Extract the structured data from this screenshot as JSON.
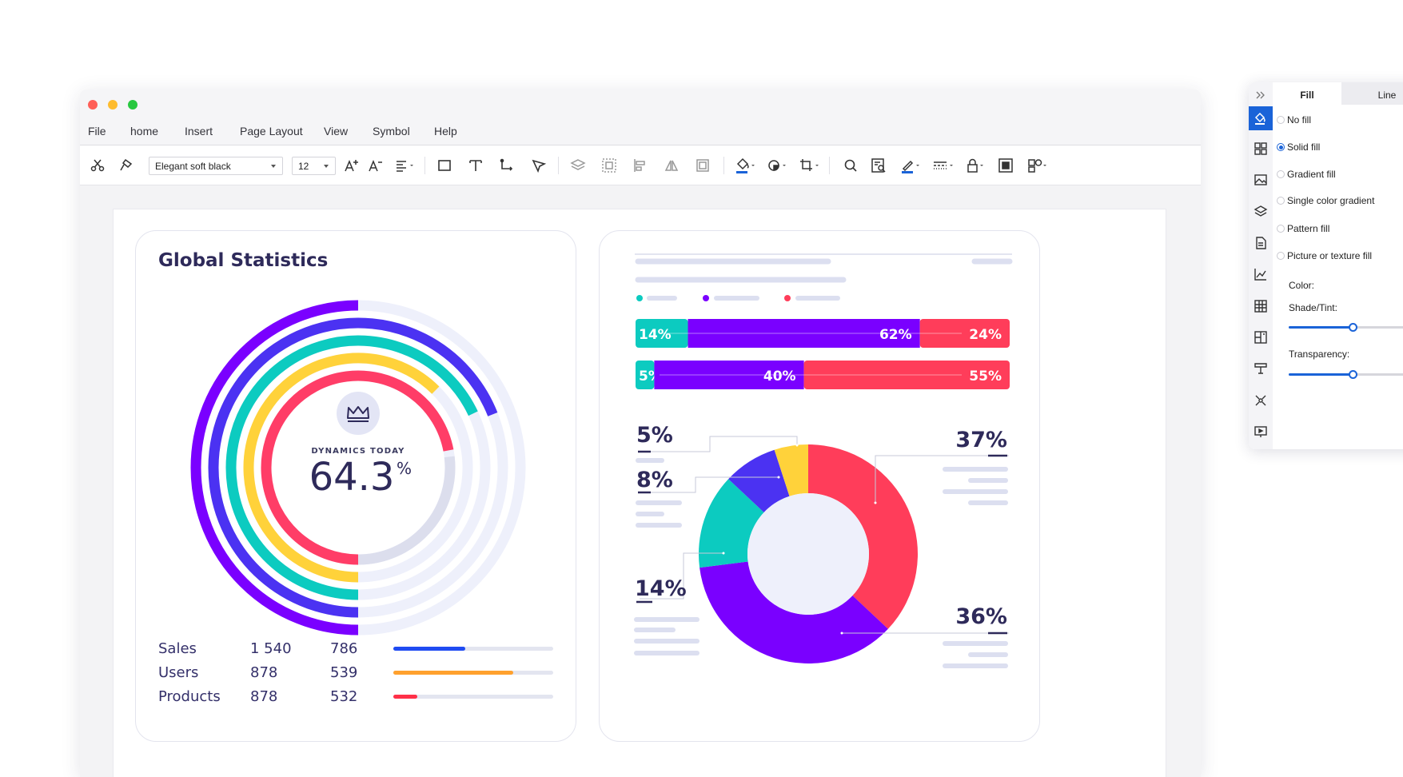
{
  "window": {
    "traffic_lights": [
      "#ff5f57",
      "#febc2e",
      "#28c840"
    ]
  },
  "menu": {
    "items": [
      "File",
      "home",
      "Insert",
      "Page Layout",
      "View",
      "Symbol",
      "Help"
    ]
  },
  "toolbar": {
    "font_family": "Elegant soft black",
    "font_size": "12",
    "icons": [
      "scissors-icon",
      "format-painter-icon",
      "increase-font-icon",
      "decrease-font-icon",
      "align-icon",
      "rectangle-icon",
      "text-icon",
      "connector-icon",
      "pointer-icon",
      "layers-icon",
      "group-icon",
      "align-left-icon",
      "flip-icon",
      "arrange-icon",
      "fill-bucket-icon",
      "shadow-icon",
      "crop-icon",
      "search-icon",
      "find-replace-icon",
      "line-color-icon",
      "line-style-icon",
      "lock-icon",
      "frame-icon",
      "more-shapes-icon"
    ]
  },
  "left_card": {
    "title": "Global Statistics",
    "center_icon": "crown-icon",
    "center_label": "DYNAMICS TODAY",
    "center_value": "64.3",
    "center_unit": "%",
    "rings": [
      {
        "color": "#ff3d67",
        "fraction": 0.72
      },
      {
        "color": "#ffd23a",
        "fraction": 0.625
      },
      {
        "color": "#0ccbc0",
        "fraction": 0.68
      },
      {
        "color": "#4b32f2",
        "fraction": 0.69
      },
      {
        "color": "#7a00ff",
        "fraction": 0.5
      }
    ],
    "stats": [
      {
        "name": "Sales",
        "v1": "1 540",
        "v2": "786",
        "progress": 0.45,
        "color": "#1f4bf2"
      },
      {
        "name": "Users",
        "v1": "878",
        "v2": "539",
        "progress": 0.75,
        "color": "#ffa12e"
      },
      {
        "name": "Products",
        "v1": "878",
        "v2": "532",
        "progress": 0.15,
        "color": "#ff3048"
      }
    ]
  },
  "right_card": {
    "legend_colors": [
      "#0ccbc0",
      "#7a00ff",
      "#ff3d5a"
    ],
    "bars": [
      {
        "segments": [
          {
            "label": "14%",
            "value": 14,
            "color": "#0ccbc0"
          },
          {
            "label": "62%",
            "value": 62,
            "color": "#7a00ff"
          },
          {
            "label": "24%",
            "value": 24,
            "color": "#ff3d5a"
          }
        ]
      },
      {
        "segments": [
          {
            "label": "5%",
            "value": 5,
            "color": "#0ccbc0"
          },
          {
            "label": "40%",
            "value": 40,
            "color": "#7a00ff"
          },
          {
            "label": "55%",
            "value": 55,
            "color": "#ff3d5a"
          }
        ]
      }
    ],
    "donut": [
      {
        "label": "37%",
        "value": 37,
        "color": "#ff3d5a"
      },
      {
        "label": "36%",
        "value": 36,
        "color": "#7a00ff"
      },
      {
        "label": "14%",
        "value": 14,
        "color": "#0ccbc0"
      },
      {
        "label": "8%",
        "value": 8,
        "color": "#4b32f2"
      },
      {
        "label": "5%",
        "value": 5,
        "color": "#ffd23a"
      }
    ]
  },
  "side_panel": {
    "tabs": [
      "Fill",
      "Line"
    ],
    "fill_options": [
      "No fill",
      "Solid fill",
      "Gradient fill",
      "Single color gradient",
      "Pattern fill",
      "Picture or texture fill"
    ],
    "selected_fill": "Solid fill",
    "color_label": "Color:",
    "shade_label": "Shade/Tint:",
    "shade_value": 0.44,
    "transparency_label": "Transparency:",
    "transparency_value": 0.44,
    "rail_icons": [
      "fill-icon",
      "grid-icon",
      "image-icon",
      "layers-icon",
      "page-icon",
      "chart-icon",
      "table-icon",
      "map-icon",
      "presentation-icon",
      "network-icon",
      "slideshow-icon"
    ]
  }
}
